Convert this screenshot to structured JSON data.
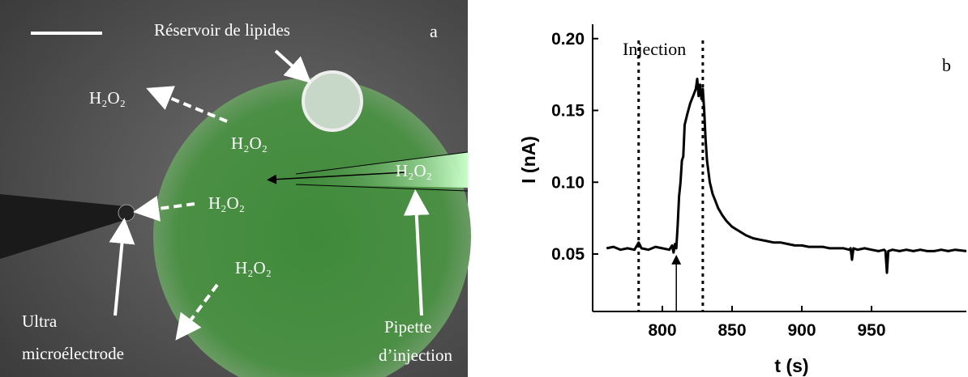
{
  "image_panel": {
    "panel_label": "a",
    "reservoir": "Réservoir de lipides",
    "h2o2": [
      "H₂O₂",
      "H₂O₂",
      "H₂O₂",
      "H₂O₂",
      "H₂O₂"
    ],
    "electrode": [
      "Ultra",
      "microélectrode"
    ],
    "pipette": [
      "Pipette",
      "d’injection"
    ]
  },
  "chart_data": {
    "type": "line",
    "panel_label": "b",
    "annotation": "Injection",
    "xlabel": "t (s)",
    "ylabel": "I (nA)",
    "color": "#000000",
    "xlim": [
      750,
      1018
    ],
    "xticks": [
      800,
      850,
      900,
      950
    ],
    "ylim": [
      0.01,
      0.21
    ],
    "yticks": [
      0.05,
      {
        "value": 0.1,
        "label": "0.10"
      },
      0.15,
      {
        "value": 0.2,
        "label": "0.20"
      }
    ],
    "vlines": [
      783,
      829
    ],
    "arrow_x": 810,
    "x": [
      760,
      765,
      770,
      775,
      780,
      783,
      785,
      790,
      795,
      800,
      805,
      807,
      808,
      809,
      810,
      811,
      812,
      813,
      814,
      815,
      816,
      818,
      820,
      822,
      824,
      825,
      826,
      827,
      828,
      829,
      830,
      831,
      832,
      834,
      836,
      838,
      840,
      843,
      846,
      850,
      855,
      860,
      865,
      870,
      875,
      880,
      885,
      890,
      895,
      900,
      905,
      910,
      915,
      920,
      925,
      930,
      934,
      935,
      936,
      937,
      940,
      945,
      950,
      955,
      959,
      960,
      961,
      962,
      965,
      970,
      975,
      980,
      985,
      990,
      995,
      1000,
      1005,
      1010,
      1018
    ],
    "values": [
      0.054,
      0.055,
      0.053,
      0.054,
      0.053,
      0.058,
      0.054,
      0.053,
      0.055,
      0.054,
      0.053,
      0.056,
      0.051,
      0.057,
      0.054,
      0.07,
      0.09,
      0.1,
      0.115,
      0.118,
      0.14,
      0.148,
      0.155,
      0.16,
      0.165,
      0.172,
      0.16,
      0.168,
      0.158,
      0.165,
      0.15,
      0.13,
      0.115,
      0.1,
      0.092,
      0.087,
      0.082,
      0.077,
      0.073,
      0.069,
      0.066,
      0.063,
      0.061,
      0.06,
      0.059,
      0.058,
      0.058,
      0.057,
      0.056,
      0.056,
      0.055,
      0.055,
      0.055,
      0.054,
      0.054,
      0.054,
      0.053,
      0.054,
      0.046,
      0.054,
      0.053,
      0.054,
      0.053,
      0.052,
      0.053,
      0.052,
      0.037,
      0.052,
      0.053,
      0.052,
      0.053,
      0.052,
      0.053,
      0.052,
      0.052,
      0.053,
      0.052,
      0.053,
      0.052
    ]
  }
}
